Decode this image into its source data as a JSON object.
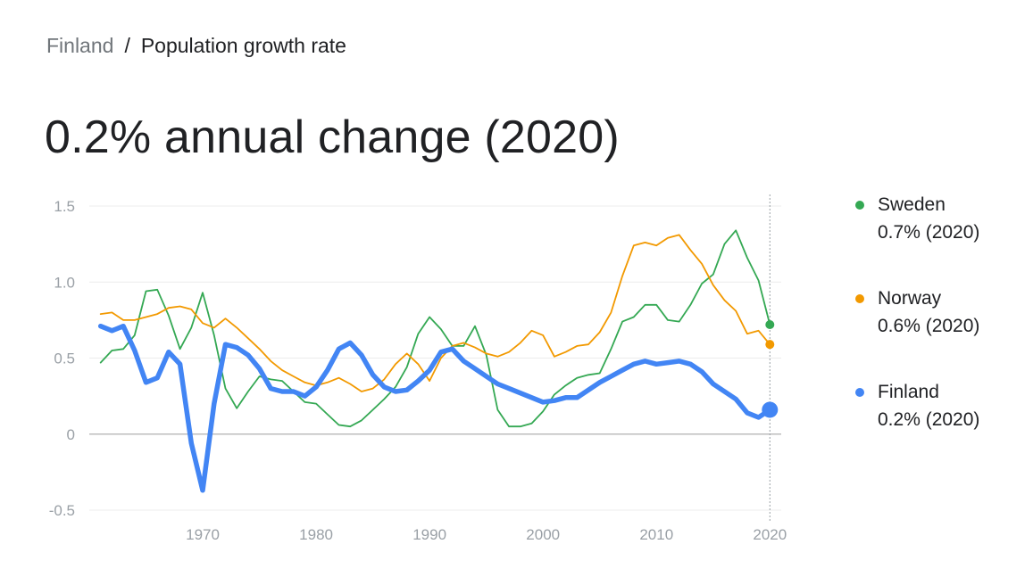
{
  "breadcrumb": {
    "root": "Finland",
    "separator": "/",
    "current": "Population growth rate"
  },
  "headline": "0.2% annual change (2020)",
  "legend": [
    {
      "name": "Sweden",
      "value": "0.7% (2020)",
      "color": "#34a853"
    },
    {
      "name": "Norway",
      "value": "0.6% (2020)",
      "color": "#f29900"
    },
    {
      "name": "Finland",
      "value": "0.2% (2020)",
      "color": "#4285f4"
    }
  ],
  "chart_data": {
    "type": "line",
    "title": "",
    "xlabel": "",
    "ylabel": "",
    "xlim": [
      1960,
      2021
    ],
    "ylim": [
      -0.5,
      1.5
    ],
    "x_ticks": [
      1970,
      1980,
      1990,
      2000,
      2010,
      2020
    ],
    "y_ticks": [
      1.5,
      1.0,
      0.5,
      0,
      -0.5
    ],
    "y_tick_labels": [
      "1.5",
      "1.0",
      "0.5",
      "0",
      "-0.5"
    ],
    "grid": "horizontal",
    "highlight_x": 2020,
    "legend_position": "right",
    "x": [
      1961,
      1962,
      1963,
      1964,
      1965,
      1966,
      1967,
      1968,
      1969,
      1970,
      1971,
      1972,
      1973,
      1974,
      1975,
      1976,
      1977,
      1978,
      1979,
      1980,
      1981,
      1982,
      1983,
      1984,
      1985,
      1986,
      1987,
      1988,
      1989,
      1990,
      1991,
      1992,
      1993,
      1994,
      1995,
      1996,
      1997,
      1998,
      1999,
      2000,
      2001,
      2002,
      2003,
      2004,
      2005,
      2006,
      2007,
      2008,
      2009,
      2010,
      2011,
      2012,
      2013,
      2014,
      2015,
      2016,
      2017,
      2018,
      2019,
      2020
    ],
    "series": [
      {
        "name": "Sweden",
        "color": "#34a853",
        "width": 1.8,
        "values": [
          0.47,
          0.55,
          0.56,
          0.65,
          0.94,
          0.95,
          0.78,
          0.56,
          0.7,
          0.93,
          0.65,
          0.3,
          0.17,
          0.28,
          0.38,
          0.36,
          0.35,
          0.28,
          0.21,
          0.2,
          0.13,
          0.06,
          0.05,
          0.09,
          0.16,
          0.23,
          0.31,
          0.44,
          0.66,
          0.77,
          0.69,
          0.58,
          0.58,
          0.71,
          0.52,
          0.16,
          0.05,
          0.05,
          0.07,
          0.15,
          0.26,
          0.32,
          0.37,
          0.39,
          0.4,
          0.56,
          0.74,
          0.77,
          0.85,
          0.85,
          0.75,
          0.74,
          0.85,
          0.99,
          1.05,
          1.25,
          1.34,
          1.16,
          1.01,
          0.72
        ]
      },
      {
        "name": "Norway",
        "color": "#f29900",
        "width": 1.8,
        "values": [
          0.79,
          0.8,
          0.75,
          0.75,
          0.77,
          0.79,
          0.83,
          0.84,
          0.82,
          0.73,
          0.7,
          0.76,
          0.7,
          0.63,
          0.56,
          0.48,
          0.42,
          0.38,
          0.34,
          0.32,
          0.34,
          0.37,
          0.33,
          0.28,
          0.3,
          0.36,
          0.46,
          0.53,
          0.46,
          0.35,
          0.5,
          0.58,
          0.6,
          0.57,
          0.53,
          0.51,
          0.54,
          0.6,
          0.68,
          0.65,
          0.51,
          0.54,
          0.58,
          0.59,
          0.67,
          0.8,
          1.04,
          1.24,
          1.26,
          1.24,
          1.29,
          1.31,
          1.21,
          1.12,
          0.98,
          0.88,
          0.81,
          0.66,
          0.68,
          0.59
        ]
      },
      {
        "name": "Finland",
        "color": "#4285f4",
        "width": 5.5,
        "values": [
          0.71,
          0.68,
          0.71,
          0.55,
          0.34,
          0.37,
          0.54,
          0.46,
          -0.06,
          -0.37,
          0.2,
          0.59,
          0.57,
          0.52,
          0.43,
          0.3,
          0.28,
          0.28,
          0.25,
          0.31,
          0.42,
          0.56,
          0.6,
          0.52,
          0.39,
          0.31,
          0.28,
          0.29,
          0.35,
          0.42,
          0.54,
          0.56,
          0.48,
          0.43,
          0.38,
          0.33,
          0.3,
          0.27,
          0.24,
          0.21,
          0.22,
          0.24,
          0.24,
          0.29,
          0.34,
          0.38,
          0.42,
          0.46,
          0.48,
          0.46,
          0.47,
          0.48,
          0.46,
          0.41,
          0.33,
          0.28,
          0.23,
          0.14,
          0.11,
          0.16
        ]
      }
    ]
  }
}
